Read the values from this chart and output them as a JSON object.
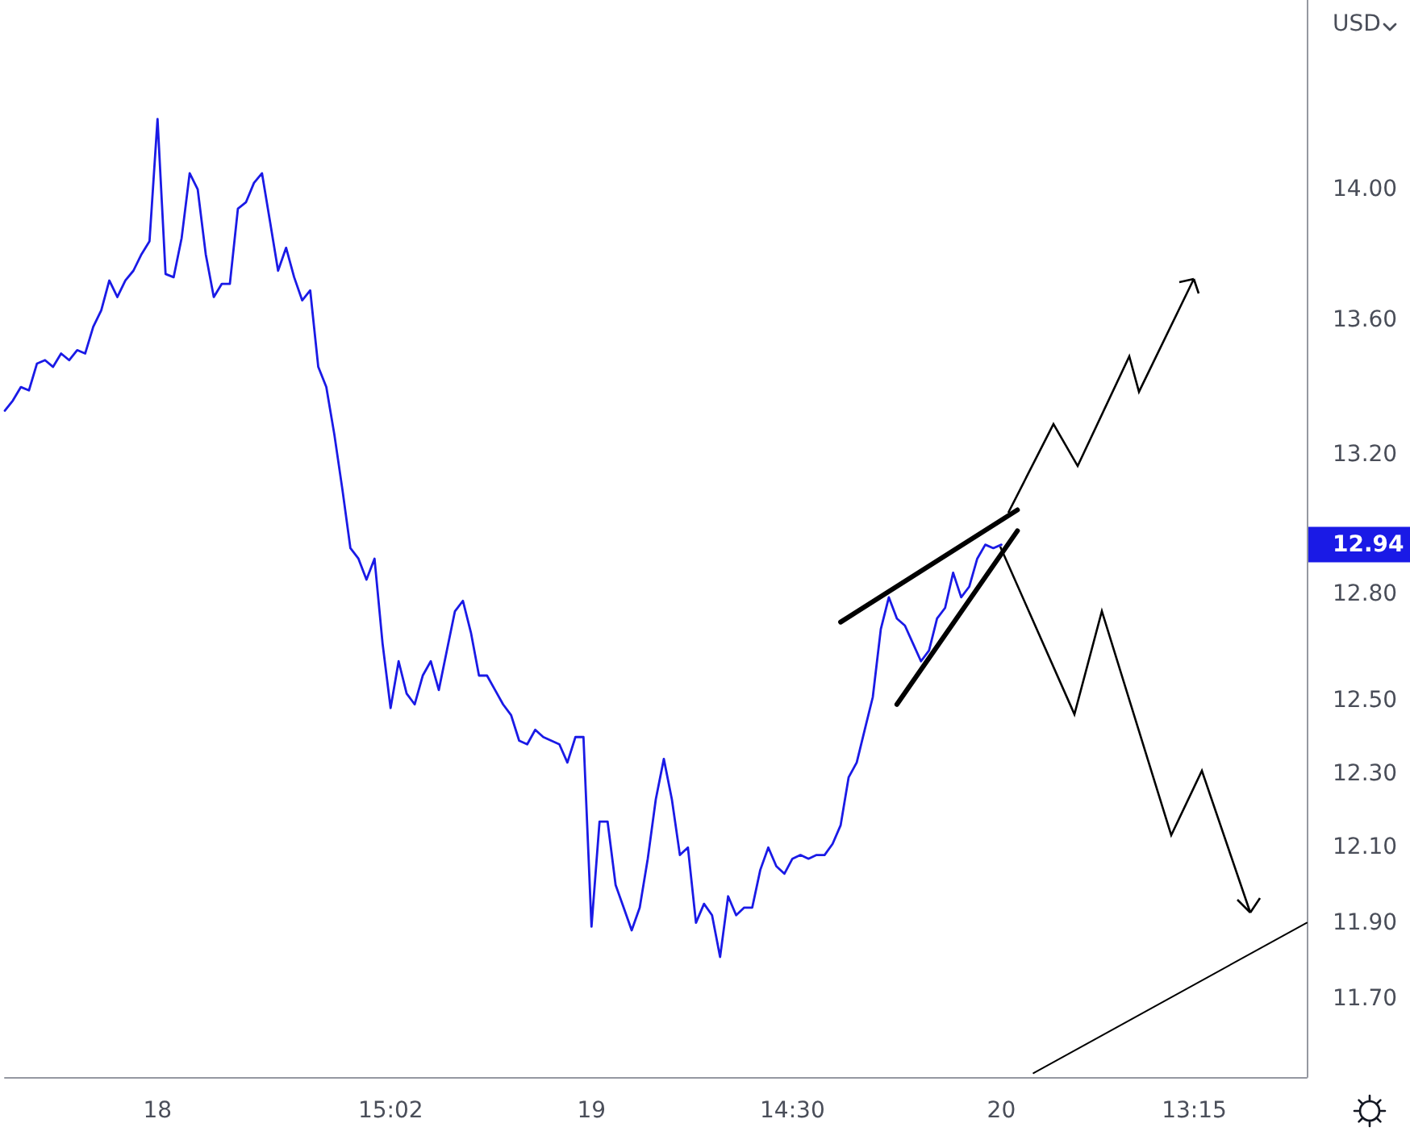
{
  "chart_data": {
    "type": "line",
    "log": "y",
    "ylabel": "USD",
    "categories": [
      null,
      null,
      null,
      null,
      null,
      null,
      null,
      null,
      null,
      null,
      null,
      null,
      null,
      null,
      null,
      null,
      null,
      null,
      null,
      "18",
      null,
      null,
      null,
      null,
      null,
      null,
      null,
      null,
      null,
      null,
      null,
      null,
      null,
      null,
      null,
      null,
      null,
      null,
      null,
      null,
      null,
      null,
      null,
      null,
      null,
      null,
      null,
      null,
      "15:02",
      null,
      null,
      null,
      null,
      null,
      null,
      null,
      null,
      null,
      null,
      null,
      null,
      null,
      null,
      null,
      null,
      null,
      null,
      null,
      null,
      null,
      null,
      null,
      null,
      "19",
      null,
      null,
      null,
      null,
      null,
      null,
      null,
      null,
      null,
      null,
      null,
      null,
      null,
      null,
      null,
      null,
      null,
      null,
      null,
      null,
      null,
      null,
      null,
      null,
      "14:30",
      null,
      null,
      null,
      null,
      null,
      null,
      null,
      null,
      null,
      null,
      null,
      null,
      null,
      null,
      null,
      null,
      null,
      null,
      null,
      null,
      null,
      null,
      null,
      null,
      null,
      "20",
      null,
      null,
      null,
      null,
      null,
      null,
      null,
      null,
      null,
      null,
      null,
      null,
      null,
      null,
      null,
      null,
      null,
      null,
      null,
      null,
      null,
      null,
      null,
      "13:15",
      null,
      null,
      null,
      null,
      null,
      null,
      null,
      null,
      null,
      null,
      null,
      null,
      null,
      null
    ],
    "series": [
      {
        "color": "#1a1ae6",
        "values": [
          13.33,
          13.36,
          13.4,
          13.39,
          13.47,
          13.48,
          13.46,
          13.5,
          13.48,
          13.51,
          13.5,
          13.58,
          13.63,
          13.72,
          13.67,
          13.72,
          13.75,
          13.8,
          13.84,
          14.22,
          13.74,
          13.73,
          13.85,
          14.05,
          14.0,
          13.8,
          13.67,
          13.71,
          13.71,
          13.94,
          13.96,
          14.02,
          14.05,
          13.9,
          13.75,
          13.82,
          13.73,
          13.66,
          13.69,
          13.46,
          13.4,
          13.26,
          13.1,
          12.93,
          12.9,
          12.84,
          12.9,
          12.66,
          12.48,
          12.61,
          12.52,
          12.49,
          12.57,
          12.61,
          12.53,
          12.64,
          12.75,
          12.78,
          12.69,
          12.57,
          12.57,
          12.53,
          12.49,
          12.46,
          12.39,
          12.38,
          12.42,
          12.4,
          12.39,
          12.38,
          12.33,
          12.4,
          12.4,
          11.89,
          12.17,
          12.17,
          12.0,
          11.94,
          11.88,
          11.94,
          12.07,
          12.23,
          12.34,
          12.23,
          12.08,
          12.1,
          11.9,
          11.95,
          11.92,
          11.81,
          11.97,
          11.92,
          11.94,
          11.94,
          12.04,
          12.1,
          12.05,
          12.03,
          12.07,
          12.08,
          12.07,
          12.08,
          12.08,
          12.11,
          12.16,
          12.29,
          12.33,
          12.42,
          12.51,
          12.7,
          12.79,
          12.73,
          12.71,
          12.66,
          12.61,
          12.64,
          12.73,
          12.76,
          12.86,
          12.79,
          12.82,
          12.9,
          12.94,
          12.93,
          12.94,
          null,
          null,
          null,
          null,
          null,
          null,
          null,
          null,
          null,
          null,
          null,
          null,
          null,
          null,
          null,
          null,
          null,
          null,
          null,
          null,
          null,
          null,
          null,
          null,
          null,
          null,
          null,
          null,
          null,
          null,
          null,
          null,
          null,
          null,
          null,
          null,
          null,
          null
        ]
      },
      {
        "color": "#000000",
        "values": [
          null,
          null,
          null,
          null,
          null,
          null,
          null,
          null,
          null,
          null,
          null,
          null,
          null,
          null,
          null,
          null,
          null,
          null,
          null,
          null,
          null,
          null,
          null,
          null,
          null,
          null,
          null,
          null,
          null,
          null,
          null,
          null,
          null,
          null,
          null,
          null,
          null,
          null,
          null,
          null,
          null,
          null,
          null,
          null,
          null,
          null,
          null,
          null,
          null,
          null,
          null,
          null,
          null,
          null,
          null,
          null,
          null,
          null,
          null,
          null,
          null,
          null,
          null,
          null,
          null,
          null,
          null,
          null,
          null,
          null,
          null,
          null,
          null,
          null,
          null,
          null,
          null,
          null,
          null,
          null,
          null,
          null,
          null,
          null,
          null,
          null,
          null,
          null,
          null,
          null,
          null,
          null,
          null,
          null,
          null,
          null,
          null,
          null,
          null,
          null,
          null,
          null,
          null,
          null,
          12.72,
          null,
          null,
          null,
          null,
          null,
          null,
          null,
          null,
          null,
          null,
          null,
          null,
          null,
          null,
          null,
          null,
          null,
          null,
          null,
          null,
          null,
          13.04,
          null,
          null,
          null,
          null,
          null,
          null,
          null,
          null,
          null,
          null,
          null,
          null,
          null,
          null,
          null,
          null,
          null,
          null,
          null,
          null,
          null,
          null,
          null,
          null,
          null,
          null,
          null,
          null,
          null,
          null,
          null,
          null,
          null,
          null,
          null,
          null
        ]
      },
      {
        "color": "#000000",
        "values": [
          null,
          null,
          null,
          null,
          null,
          null,
          null,
          null,
          null,
          null,
          null,
          null,
          null,
          null,
          null,
          null,
          null,
          null,
          null,
          null,
          null,
          null,
          null,
          null,
          null,
          null,
          null,
          null,
          null,
          null,
          null,
          null,
          null,
          null,
          null,
          null,
          null,
          null,
          null,
          null,
          null,
          null,
          null,
          null,
          null,
          null,
          null,
          null,
          null,
          null,
          null,
          null,
          null,
          null,
          null,
          null,
          null,
          null,
          null,
          null,
          null,
          null,
          null,
          null,
          null,
          null,
          null,
          null,
          null,
          null,
          null,
          null,
          null,
          null,
          null,
          null,
          null,
          null,
          null,
          null,
          null,
          null,
          null,
          null,
          null,
          null,
          null,
          null,
          null,
          null,
          null,
          null,
          null,
          null,
          null,
          null,
          null,
          null,
          null,
          null,
          null,
          null,
          null,
          null,
          null,
          null,
          null,
          null,
          null,
          null,
          null,
          12.49,
          null,
          null,
          null,
          null,
          null,
          null,
          null,
          null,
          null,
          null,
          null,
          null,
          null,
          null,
          12.98,
          null,
          null,
          null,
          null,
          null,
          null,
          null,
          null,
          null,
          null,
          null,
          null,
          null,
          null,
          null,
          null,
          null,
          null,
          null,
          null,
          null,
          null,
          null,
          null,
          null,
          null,
          null,
          null,
          null,
          null,
          null,
          null,
          null,
          null,
          null,
          null
        ]
      },
      {
        "color": "#000000",
        "values": [
          null,
          null,
          null,
          null,
          null,
          null,
          null,
          null,
          null,
          null,
          null,
          null,
          null,
          null,
          null,
          null,
          null,
          null,
          null,
          null,
          null,
          null,
          null,
          null,
          null,
          null,
          null,
          null,
          null,
          null,
          null,
          null,
          null,
          null,
          null,
          null,
          null,
          null,
          null,
          null,
          null,
          null,
          null,
          null,
          null,
          null,
          null,
          null,
          null,
          null,
          null,
          null,
          null,
          null,
          null,
          null,
          null,
          null,
          null,
          null,
          null,
          null,
          null,
          null,
          null,
          null,
          null,
          null,
          null,
          null,
          null,
          null,
          null,
          null,
          null,
          null,
          null,
          null,
          null,
          null,
          null,
          null,
          null,
          null,
          null,
          null,
          null,
          null,
          null,
          null,
          null,
          null,
          null,
          null,
          null,
          null,
          null,
          null,
          null,
          null,
          null,
          null,
          null,
          null,
          null,
          null,
          null,
          null,
          null,
          null,
          null,
          null,
          null,
          null,
          null,
          null,
          null,
          null,
          null,
          null,
          null,
          null,
          null,
          null,
          null,
          null,
          null,
          null,
          11.51,
          null,
          null,
          null,
          null,
          null,
          null,
          null,
          null,
          null,
          null,
          null,
          null,
          null,
          null,
          null,
          null,
          null,
          null,
          null,
          null,
          null,
          null,
          null,
          null,
          null,
          null,
          null,
          null,
          null,
          null,
          null,
          null,
          null,
          11.9
        ]
      }
    ],
    "ylim": [
      11.5,
      14.6
    ],
    "yticks": [
      {
        "value": 11.7,
        "label": "11.70"
      },
      {
        "value": 11.9,
        "label": "11.90"
      },
      {
        "value": 12.1,
        "label": "12.10"
      },
      {
        "value": 12.3,
        "label": "12.30"
      },
      {
        "value": 12.5,
        "label": "12.50"
      },
      {
        "value": 12.8,
        "label": "12.80"
      },
      {
        "value": 13.2,
        "label": "13.20"
      },
      {
        "value": 13.6,
        "label": "13.60"
      },
      {
        "value": 14,
        "label": "14.00"
      }
    ],
    "annotations": [
      "12.94"
    ]
  }
}
